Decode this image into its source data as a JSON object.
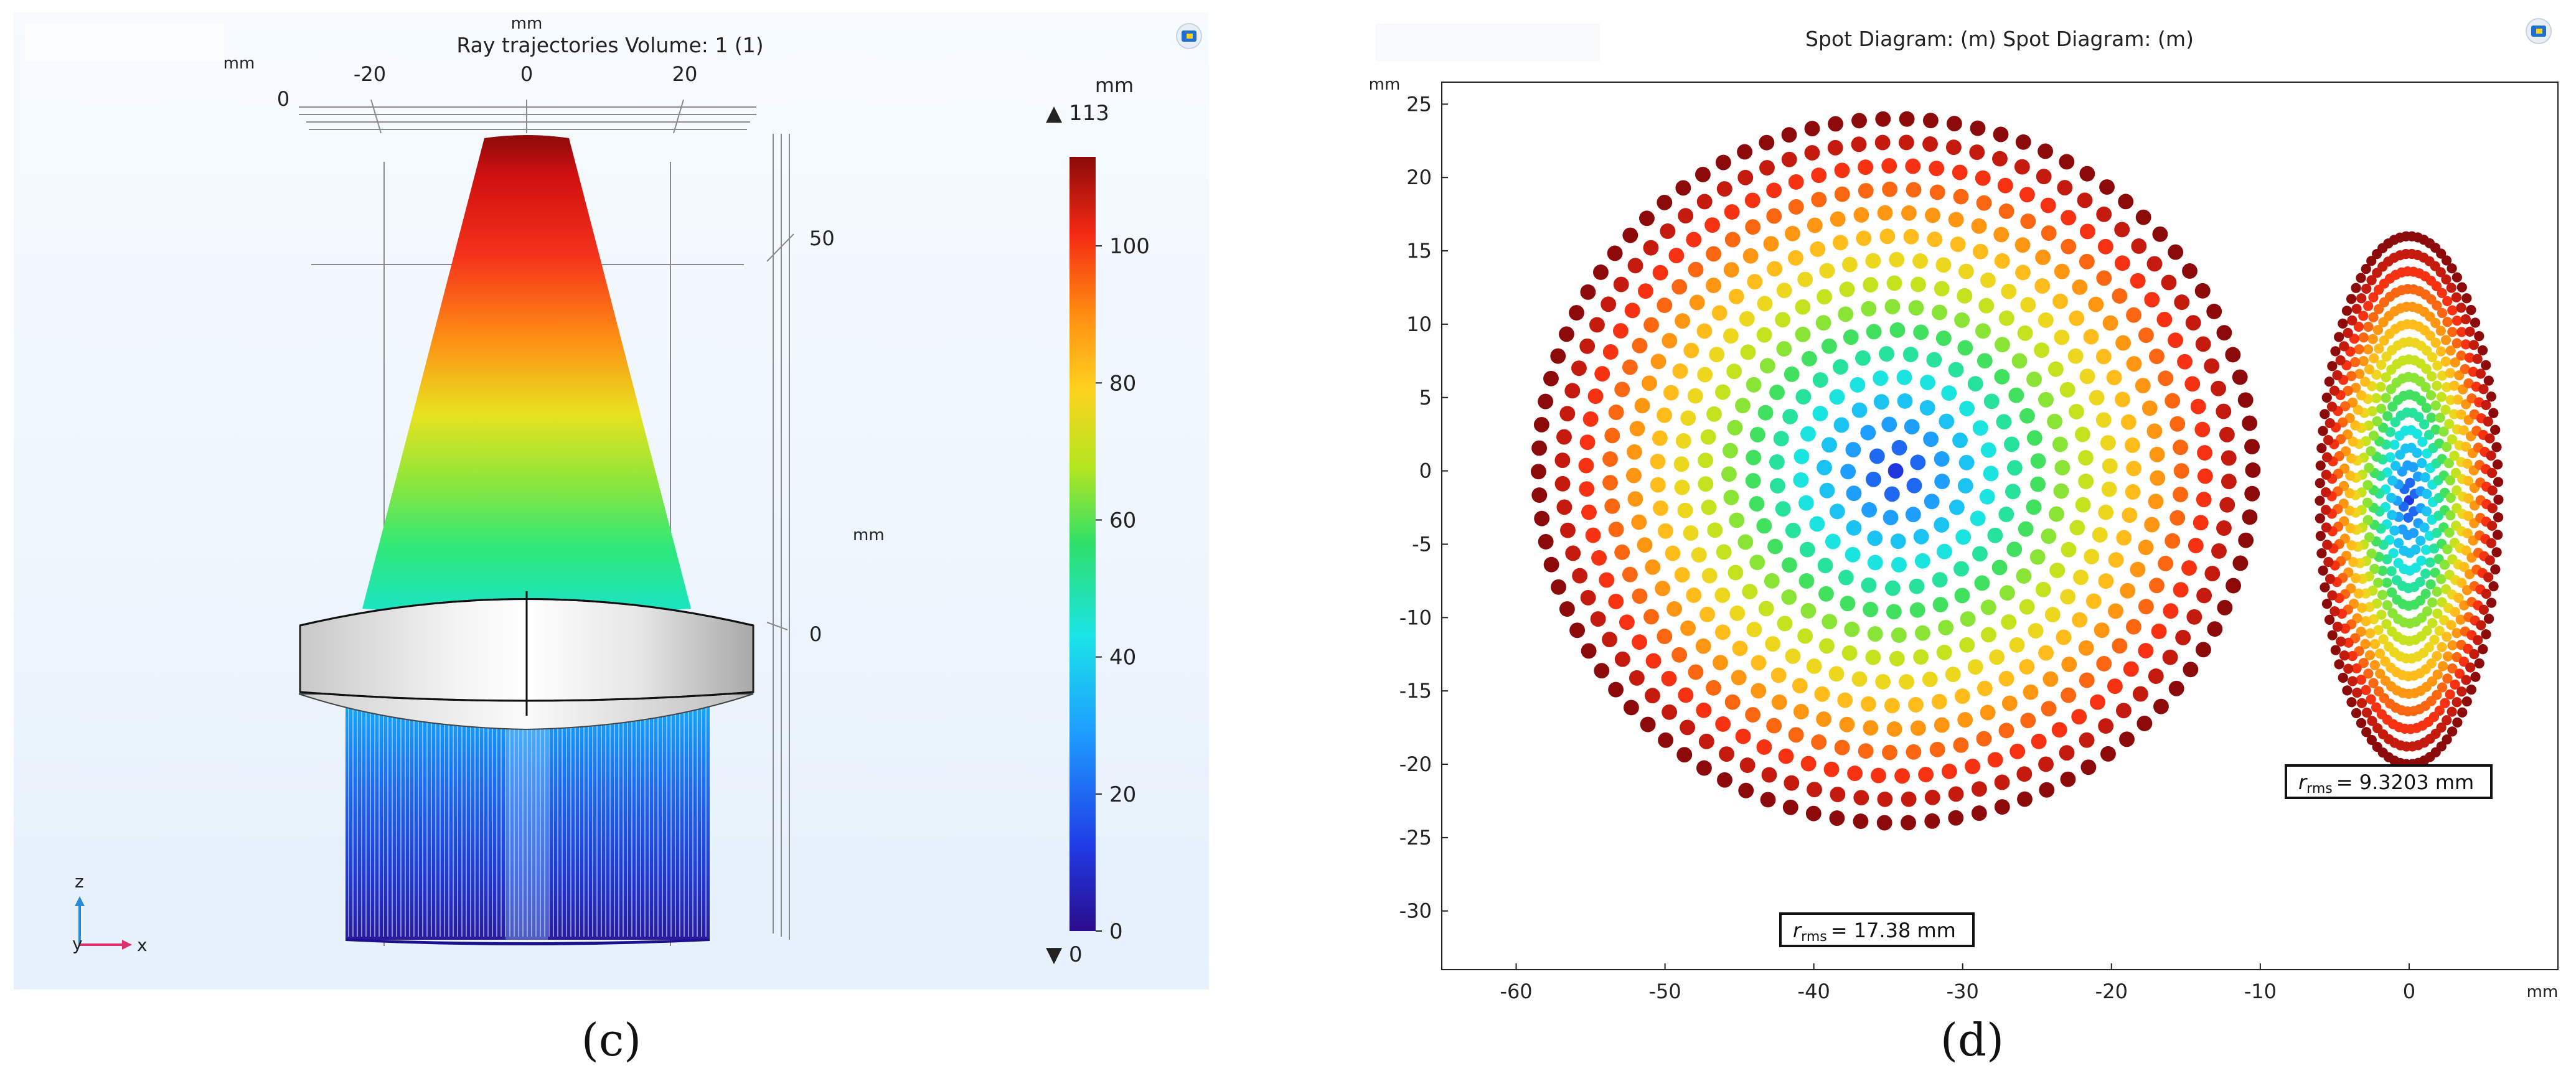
{
  "panel_labels": {
    "left": "(c)",
    "right": "(d)"
  },
  "chart_data": [
    {
      "type": "3d-ray-plot",
      "title": "Ray trajectories  Volume: 1 (1)",
      "top_axis": {
        "unit": "mm",
        "unit_left": "mm",
        "ticks": [
          "-20",
          "0",
          "20"
        ],
        "zero_label": "0"
      },
      "right_axis": {
        "unit": "mm",
        "ticks": [
          "50",
          "0"
        ]
      },
      "colorbar": {
        "unit": "mm",
        "max_marker": "▲ 113",
        "min_marker": "▼ 0",
        "range": [
          0,
          113
        ],
        "ticks": [
          "100",
          "80",
          "60",
          "40",
          "20",
          "0"
        ],
        "colormap": [
          "#2a0c8c",
          "#1f3ce6",
          "#1ea0ff",
          "#19e4e8",
          "#2ee06a",
          "#b4e61e",
          "#ffd21e",
          "#ff8a10",
          "#f52a12",
          "#8c0a0a"
        ]
      },
      "axis_triad": {
        "z_label": "z",
        "y_label": "y",
        "x_label": "x"
      }
    },
    {
      "type": "scatter",
      "title": "Spot Diagram: (m)  Spot Diagram: (m)",
      "ylabel": "mm",
      "xlabel": "mm",
      "xlim": [
        -65,
        10
      ],
      "ylim": [
        -34,
        26.5
      ],
      "xticks": [
        "-60",
        "-50",
        "-40",
        "-30",
        "-20",
        "-10",
        "0"
      ],
      "yticks": [
        "25",
        "20",
        "15",
        "10",
        "5",
        "0",
        "-5",
        "-10",
        "-15",
        "-20",
        "-25",
        "-30"
      ],
      "series": [
        {
          "shape": "filled circular grid",
          "center": [
            -34.5,
            0
          ],
          "radius": 24,
          "rings": 15,
          "rrms": "17.38 mm"
        },
        {
          "shape": "ellipse",
          "center": [
            0,
            -2
          ],
          "semi_axis_x": 6,
          "semi_axis_y": 18,
          "rrms": "9.3203 mm"
        }
      ],
      "annotations": [
        {
          "symbol": "r",
          "subscript": "rms",
          "value": "= 17.38 mm"
        },
        {
          "symbol": "r",
          "subscript": "rms",
          "value": "= 9.3203 mm"
        }
      ]
    }
  ]
}
